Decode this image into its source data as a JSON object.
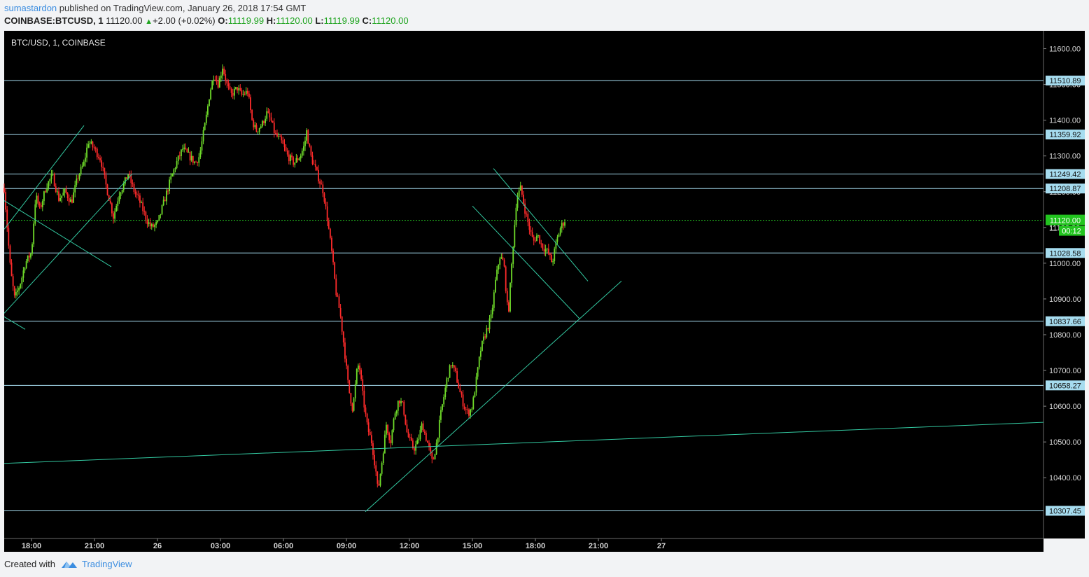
{
  "header": {
    "author": "sumastardon",
    "published": "published on TradingView.com, January 26, 2018 17:54 GMT",
    "symbol": "COINBASE:BTCUSD, 1",
    "last": "11120.00",
    "change_arrow": "▲",
    "change": "+2.00 (+0.02%)",
    "o_label": "O:",
    "o_val": "11119.99",
    "h_label": "H:",
    "h_val": "11120.00",
    "l_label": "L:",
    "l_val": "11119.99",
    "c_label": "C:",
    "c_val": "11120.00"
  },
  "footer": {
    "created": "Created with",
    "brand": "TradingView",
    "logo_icon": "tradingview-logo-icon"
  },
  "colors": {
    "background": "#000000",
    "up": "#6fdc2a",
    "down": "#ff2b2b",
    "level": "#a6dcef",
    "trend": "#33c9a1",
    "price_tag": "#22c41f"
  },
  "chart_data": {
    "type": "candlestick",
    "title": "BTC/USD, 1, COINBASE",
    "ylim": [
      10230,
      11650
    ],
    "y_ticks": [
      11600,
      11500,
      11400,
      11300,
      11200,
      11100,
      11000,
      10900,
      10800,
      10700,
      10600,
      10500,
      10400
    ],
    "y_tick_labels": [
      "11600.00",
      "11500.00",
      "11400.00",
      "11300.00",
      "11200.00",
      "11100.00",
      "11000.00",
      "10900.00",
      "10800.00",
      "10700.00",
      "10600.00",
      "10500.00",
      "10400.00"
    ],
    "x_range_hours": [
      -7.3,
      42.2
    ],
    "x_ticks": [
      {
        "h": -6,
        "label": "18:00"
      },
      {
        "h": -3,
        "label": "21:00"
      },
      {
        "h": 0,
        "label": "26"
      },
      {
        "h": 3,
        "label": "03:00"
      },
      {
        "h": 6,
        "label": "06:00"
      },
      {
        "h": 9,
        "label": "09:00"
      },
      {
        "h": 12,
        "label": "12:00"
      },
      {
        "h": 15,
        "label": "15:00"
      },
      {
        "h": 18,
        "label": "18:00"
      },
      {
        "h": 21,
        "label": "21:00"
      },
      {
        "h": 24,
        "label": "27"
      }
    ],
    "horizontal_levels": [
      {
        "value": 11510.89,
        "label": "11510.89"
      },
      {
        "value": 11359.92,
        "label": "11359.92"
      },
      {
        "value": 11249.42,
        "label": "11249.42"
      },
      {
        "value": 11208.87,
        "label": "11208.87"
      },
      {
        "value": 11028.58,
        "label": "11028.58"
      },
      {
        "value": 10837.66,
        "label": "10837.66"
      },
      {
        "value": 10658.27,
        "label": "10658.27"
      },
      {
        "value": 10307.45,
        "label": "10307.45"
      }
    ],
    "current_price": {
      "value": 11120.0,
      "label": "11120.00",
      "countdown": "00:12"
    },
    "hidden_tick_fragment": "11",
    "price_path": [
      [
        -7.3,
        11210
      ],
      [
        -7.0,
        10980
      ],
      [
        -6.8,
        10900
      ],
      [
        -6.5,
        10950
      ],
      [
        -6.3,
        11000
      ],
      [
        -6.0,
        11030
      ],
      [
        -5.8,
        11190
      ],
      [
        -5.6,
        11150
      ],
      [
        -5.3,
        11215
      ],
      [
        -5.0,
        11245
      ],
      [
        -4.7,
        11180
      ],
      [
        -4.4,
        11200
      ],
      [
        -4.1,
        11170
      ],
      [
        -3.8,
        11240
      ],
      [
        -3.5,
        11280
      ],
      [
        -3.3,
        11340
      ],
      [
        -3.0,
        11320
      ],
      [
        -2.7,
        11290
      ],
      [
        -2.5,
        11230
      ],
      [
        -2.3,
        11180
      ],
      [
        -2.1,
        11130
      ],
      [
        -1.8,
        11200
      ],
      [
        -1.6,
        11220
      ],
      [
        -1.4,
        11250
      ],
      [
        -1.1,
        11200
      ],
      [
        -0.9,
        11180
      ],
      [
        -0.7,
        11150
      ],
      [
        -0.5,
        11120
      ],
      [
        -0.3,
        11100
      ],
      [
        0.0,
        11110
      ],
      [
        0.3,
        11170
      ],
      [
        0.6,
        11230
      ],
      [
        0.9,
        11280
      ],
      [
        1.2,
        11320
      ],
      [
        1.5,
        11300
      ],
      [
        1.8,
        11280
      ],
      [
        2.0,
        11300
      ],
      [
        2.3,
        11400
      ],
      [
        2.5,
        11480
      ],
      [
        2.7,
        11530
      ],
      [
        2.9,
        11500
      ],
      [
        3.1,
        11550
      ],
      [
        3.3,
        11500
      ],
      [
        3.5,
        11470
      ],
      [
        3.8,
        11490
      ],
      [
        4.0,
        11470
      ],
      [
        4.3,
        11480
      ],
      [
        4.5,
        11400
      ],
      [
        4.7,
        11370
      ],
      [
        5.0,
        11390
      ],
      [
        5.2,
        11420
      ],
      [
        5.4,
        11400
      ],
      [
        5.6,
        11360
      ],
      [
        5.9,
        11340
      ],
      [
        6.2,
        11300
      ],
      [
        6.5,
        11280
      ],
      [
        6.8,
        11300
      ],
      [
        7.0,
        11330
      ],
      [
        7.1,
        11370
      ],
      [
        7.3,
        11300
      ],
      [
        7.6,
        11250
      ],
      [
        7.9,
        11200
      ],
      [
        8.1,
        11120
      ],
      [
        8.3,
        11030
      ],
      [
        8.5,
        10920
      ],
      [
        8.7,
        10860
      ],
      [
        8.9,
        10760
      ],
      [
        9.1,
        10650
      ],
      [
        9.3,
        10590
      ],
      [
        9.5,
        10700
      ],
      [
        9.6,
        10720
      ],
      [
        9.8,
        10620
      ],
      [
        10.0,
        10540
      ],
      [
        10.2,
        10500
      ],
      [
        10.4,
        10420
      ],
      [
        10.5,
        10360
      ],
      [
        10.7,
        10450
      ],
      [
        10.9,
        10550
      ],
      [
        11.1,
        10500
      ],
      [
        11.3,
        10580
      ],
      [
        11.5,
        10620
      ],
      [
        11.7,
        10600
      ],
      [
        11.9,
        10520
      ],
      [
        12.2,
        10480
      ],
      [
        12.4,
        10500
      ],
      [
        12.6,
        10550
      ],
      [
        12.9,
        10490
      ],
      [
        13.1,
        10440
      ],
      [
        13.3,
        10500
      ],
      [
        13.5,
        10580
      ],
      [
        13.8,
        10680
      ],
      [
        14.0,
        10720
      ],
      [
        14.2,
        10690
      ],
      [
        14.4,
        10640
      ],
      [
        14.6,
        10600
      ],
      [
        14.8,
        10580
      ],
      [
        15.0,
        10600
      ],
      [
        15.2,
        10680
      ],
      [
        15.4,
        10760
      ],
      [
        15.6,
        10800
      ],
      [
        15.9,
        10850
      ],
      [
        16.1,
        10950
      ],
      [
        16.3,
        11020
      ],
      [
        16.5,
        11000
      ],
      [
        16.7,
        10850
      ],
      [
        16.9,
        11020
      ],
      [
        17.1,
        11180
      ],
      [
        17.3,
        11210
      ],
      [
        17.5,
        11150
      ],
      [
        17.7,
        11100
      ],
      [
        17.9,
        11060
      ],
      [
        18.1,
        11080
      ],
      [
        18.3,
        11050
      ],
      [
        18.6,
        11030
      ],
      [
        18.8,
        11000
      ],
      [
        19.0,
        11060
      ],
      [
        19.2,
        11100
      ],
      [
        19.4,
        11120
      ]
    ],
    "trend_lines": [
      {
        "from": [
          -7.3,
          11095
        ],
        "to": [
          -3.5,
          11385
        ]
      },
      {
        "from": [
          -7.3,
          10860
        ],
        "to": [
          -1.2,
          11250
        ]
      },
      {
        "from": [
          -7.3,
          11175
        ],
        "to": [
          -2.2,
          10990
        ]
      },
      {
        "from": [
          -7.3,
          10850
        ],
        "to": [
          -6.3,
          10815
        ]
      },
      {
        "from": [
          -7.3,
          10440
        ],
        "to": [
          42.2,
          10555
        ]
      },
      {
        "from": [
          9.9,
          10305
        ],
        "to": [
          22.1,
          10950
        ]
      },
      {
        "from": [
          16.0,
          11265
        ],
        "to": [
          20.5,
          10950
        ]
      },
      {
        "from": [
          15.0,
          11160
        ],
        "to": [
          20.1,
          10845
        ]
      }
    ]
  }
}
